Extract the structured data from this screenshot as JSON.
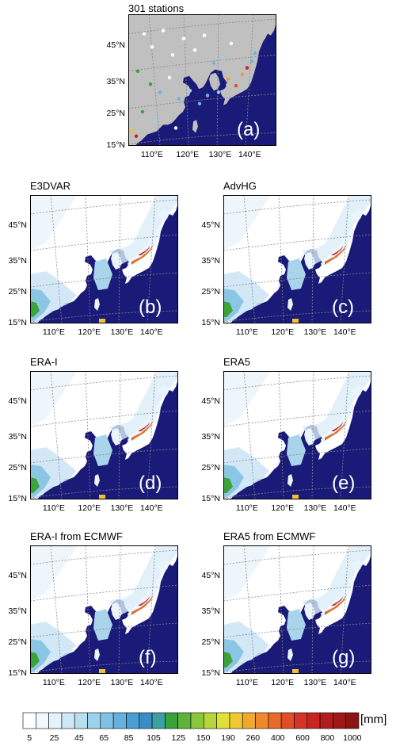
{
  "panels": [
    {
      "title": "301 stations",
      "letter": "(a)",
      "type": "stations"
    },
    {
      "title": "E3DVAR",
      "letter": "(b)",
      "type": "field"
    },
    {
      "title": "AdvHG",
      "letter": "(c)",
      "type": "field"
    },
    {
      "title": "ERA-I",
      "letter": "(d)",
      "type": "field"
    },
    {
      "title": "ERA5",
      "letter": "(e)",
      "type": "field"
    },
    {
      "title": "ERA-I from ECMWF",
      "letter": "(f)",
      "type": "field"
    },
    {
      "title": "ERA5 from ECMWF",
      "letter": "(g)",
      "type": "field"
    }
  ],
  "lat_labels": [
    "45°N",
    "35°N",
    "25°N",
    "15°N"
  ],
  "lon_labels": [
    "110°E",
    "120°E",
    "130°E",
    "140°E"
  ],
  "colorbar": {
    "unit": "[mm]",
    "labels": [
      "5",
      "25",
      "45",
      "65",
      "85",
      "105",
      "125",
      "150",
      "190",
      "260",
      "400",
      "600",
      "800",
      "1000"
    ]
  },
  "colors": {
    "ocean": "#1a1a78",
    "land_stations_panel": "#c0c0c0",
    "land_field": "#ffffff",
    "grid": "#888888"
  }
}
